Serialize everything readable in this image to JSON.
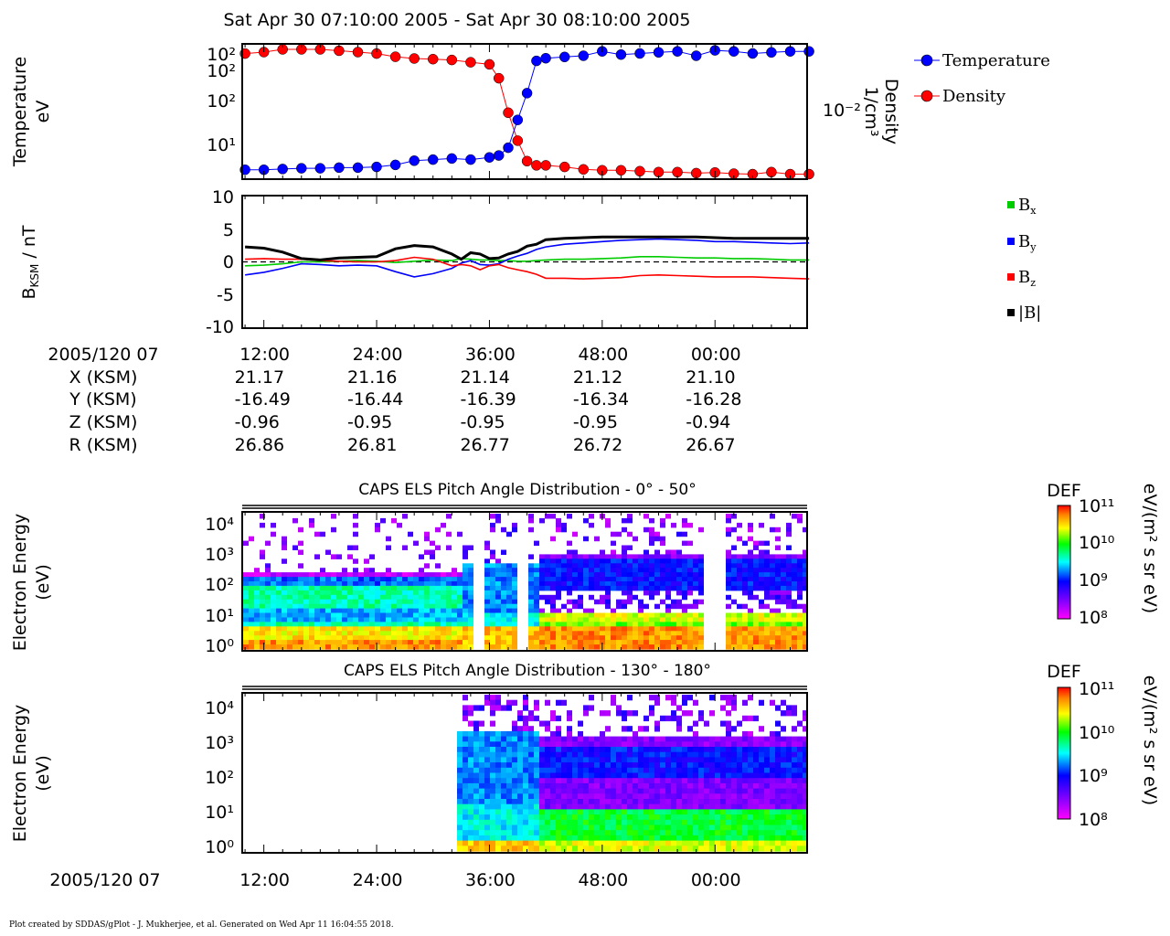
{
  "header": {
    "title": "Sat Apr 30 07:10:00 2005 - Sat Apr 30 08:10:00 2005"
  },
  "footer": {
    "credit": "Plot created by SDDAS/gPlot - J. Mukherjee, et al.  Generated on Wed Apr 11 16:04:55 2018."
  },
  "time_axis": {
    "ticks": [
      "12:00",
      "24:00",
      "36:00",
      "48:00",
      "00:00"
    ],
    "tick_minutes": [
      12,
      24,
      36,
      48,
      60
    ],
    "range_minutes": [
      9.7,
      69.8
    ]
  },
  "ephemeris": {
    "header_label": "2005/120 07",
    "rows": [
      {
        "label": "X (KSM)",
        "values": [
          "21.17",
          "21.16",
          "21.14",
          "21.12",
          "21.10"
        ]
      },
      {
        "label": "Y (KSM)",
        "values": [
          "-16.49",
          "-16.44",
          "-16.39",
          "-16.34",
          "-16.28"
        ]
      },
      {
        "label": "Z (KSM)",
        "values": [
          "-0.96",
          "-0.95",
          "-0.95",
          "-0.95",
          "-0.94"
        ]
      },
      {
        "label": "R (KSM)",
        "values": [
          "26.86",
          "26.81",
          "26.77",
          "26.72",
          "26.67"
        ]
      }
    ]
  },
  "bottom_axis_label": "2005/120 07",
  "colors": {
    "temperature": "#0000ff",
    "density": "#ff0000",
    "bx": "#00cc00",
    "by": "#0000ff",
    "bz": "#ff0000",
    "bmag": "#000000"
  },
  "chart_data": [
    {
      "type": "line",
      "panel": "plasma-moments",
      "ylabel": "Temperature",
      "yunit": "eV",
      "y2label": "Density",
      "y2unit": "1/cm³",
      "yscale": "log",
      "y_ticks": [
        "10²",
        "10²",
        "10²",
        "10¹"
      ],
      "y2_ticks": [
        "10⁻²"
      ],
      "legend": [
        "Temperature",
        "Density"
      ],
      "legend_position": "right",
      "x": [
        10,
        12,
        14,
        16,
        18,
        20,
        22,
        24,
        26,
        28,
        30,
        32,
        34,
        36,
        37,
        38,
        39,
        40,
        41,
        42,
        44,
        46,
        48,
        50,
        52,
        54,
        56,
        58,
        60,
        62,
        64,
        66,
        68,
        70
      ],
      "series": [
        {
          "name": "Temperature",
          "values": [
            4.4,
            4.4,
            4.5,
            4.6,
            4.6,
            4.7,
            4.7,
            4.8,
            5.1,
            5.8,
            6.0,
            6.2,
            6.0,
            6.4,
            6.8,
            8.6,
            20,
            45,
            120,
            130,
            135,
            140,
            160,
            145,
            150,
            155,
            160,
            140,
            165,
            160,
            150,
            155,
            160,
            160
          ]
        },
        {
          "name": "Density",
          "values": [
            0.095,
            0.1,
            0.11,
            0.11,
            0.11,
            0.105,
            0.1,
            0.095,
            0.085,
            0.08,
            0.078,
            0.076,
            0.07,
            0.065,
            0.04,
            0.012,
            0.0045,
            0.0022,
            0.0019,
            0.0019,
            0.0018,
            0.00165,
            0.0016,
            0.0016,
            0.00155,
            0.0015,
            0.0015,
            0.00145,
            0.00148,
            0.00142,
            0.0014,
            0.0015,
            0.0014,
            0.0014
          ]
        }
      ]
    },
    {
      "type": "line",
      "panel": "magnetic-field",
      "ylabel": "B",
      "ylabel_sub": "KSM",
      "yunit": "nT",
      "ylim": [
        -10,
        10
      ],
      "y_ticks": [
        "10",
        "5",
        "0",
        "-5",
        "-10"
      ],
      "legend_position": "right",
      "x": [
        10,
        12,
        14,
        16,
        18,
        20,
        22,
        24,
        26,
        28,
        30,
        32,
        33,
        34,
        35,
        36,
        37,
        38,
        39,
        40,
        41,
        42,
        44,
        46,
        48,
        50,
        52,
        54,
        56,
        58,
        60,
        62,
        64,
        66,
        68,
        70
      ],
      "series": [
        {
          "name": "B",
          "sub": "x",
          "values": [
            -0.6,
            -0.5,
            -0.3,
            0,
            0,
            0.1,
            0.2,
            0.1,
            -0.1,
            0.1,
            0.3,
            0.2,
            0.5,
            0.4,
            0.3,
            0.3,
            0.2,
            0.2,
            0.1,
            0.1,
            0.2,
            0.3,
            0.4,
            0.4,
            0.5,
            0.6,
            0.8,
            0.8,
            0.7,
            0.6,
            0.6,
            0.5,
            0.5,
            0.4,
            0.3,
            0.3
          ]
        },
        {
          "name": "B",
          "sub": "y",
          "values": [
            -2.0,
            -1.6,
            -1.0,
            -0.3,
            -0.4,
            -0.6,
            -0.5,
            -0.6,
            -1.5,
            -2.3,
            -1.8,
            -1.0,
            -0.2,
            0.2,
            -0.4,
            -0.5,
            -0.3,
            0.4,
            0.9,
            1.3,
            1.9,
            2.3,
            2.7,
            2.9,
            3.1,
            3.3,
            3.4,
            3.5,
            3.4,
            3.3,
            3.1,
            3.1,
            3.0,
            2.9,
            2.8,
            2.9
          ]
        },
        {
          "name": "B",
          "sub": "z",
          "values": [
            0.4,
            0.5,
            0.4,
            0.4,
            0.2,
            0.1,
            0,
            0,
            0.2,
            0.7,
            0.4,
            -0.6,
            -0.4,
            -0.6,
            -1.2,
            -0.6,
            -0.4,
            -0.9,
            -1.2,
            -1.5,
            -1.9,
            -2.5,
            -2.5,
            -2.6,
            -2.5,
            -2.4,
            -2.1,
            -2.0,
            -2.1,
            -2.2,
            -2.3,
            -2.3,
            -2.3,
            -2.4,
            -2.5,
            -2.6
          ]
        },
        {
          "name": "|B|",
          "values": [
            2.3,
            2.1,
            1.5,
            0.5,
            0.3,
            0.6,
            0.7,
            0.8,
            2.0,
            2.5,
            2.3,
            1.2,
            0.4,
            1.4,
            1.2,
            0.5,
            0.6,
            1.2,
            1.6,
            2.4,
            2.7,
            3.4,
            3.6,
            3.7,
            3.8,
            3.8,
            3.8,
            3.8,
            3.8,
            3.8,
            3.7,
            3.6,
            3.6,
            3.6,
            3.6,
            3.6
          ]
        }
      ]
    },
    {
      "type": "heatmap",
      "panel": "pad-0-50",
      "title": "CAPS ELS Pitch Angle Distribution - 0° - 50°",
      "ylabel": "Electron Energy",
      "yunit": "(eV)",
      "yscale": "log",
      "y_ticks": [
        "10⁴",
        "10³",
        "10²",
        "10¹",
        "10⁰"
      ],
      "colorbar": {
        "label": "DEF",
        "unit": "eV/(m² s sr eV)",
        "ticks": [
          "10¹¹",
          "10¹⁰",
          "10⁹",
          "10⁸"
        ],
        "range_log10": [
          8,
          11
        ]
      },
      "data_gaps_minutes": [
        [
          34.0,
          35.2
        ],
        [
          38.8,
          40.0
        ],
        [
          58.8,
          60.8
        ]
      ]
    },
    {
      "type": "heatmap",
      "panel": "pad-130-180",
      "title": "CAPS ELS Pitch Angle Distribution - 130° - 180°",
      "ylabel": "Electron Energy",
      "yunit": "(eV)",
      "yscale": "log",
      "y_ticks": [
        "10⁴",
        "10³",
        "10²",
        "10¹",
        "10⁰"
      ],
      "colorbar": {
        "label": "DEF",
        "unit": "eV/(m² s sr eV)",
        "ticks": [
          "10¹¹",
          "10¹⁰",
          "10⁹",
          "10⁸"
        ],
        "range_log10": [
          8,
          11
        ]
      },
      "data_start_minutes": 32.5
    }
  ]
}
